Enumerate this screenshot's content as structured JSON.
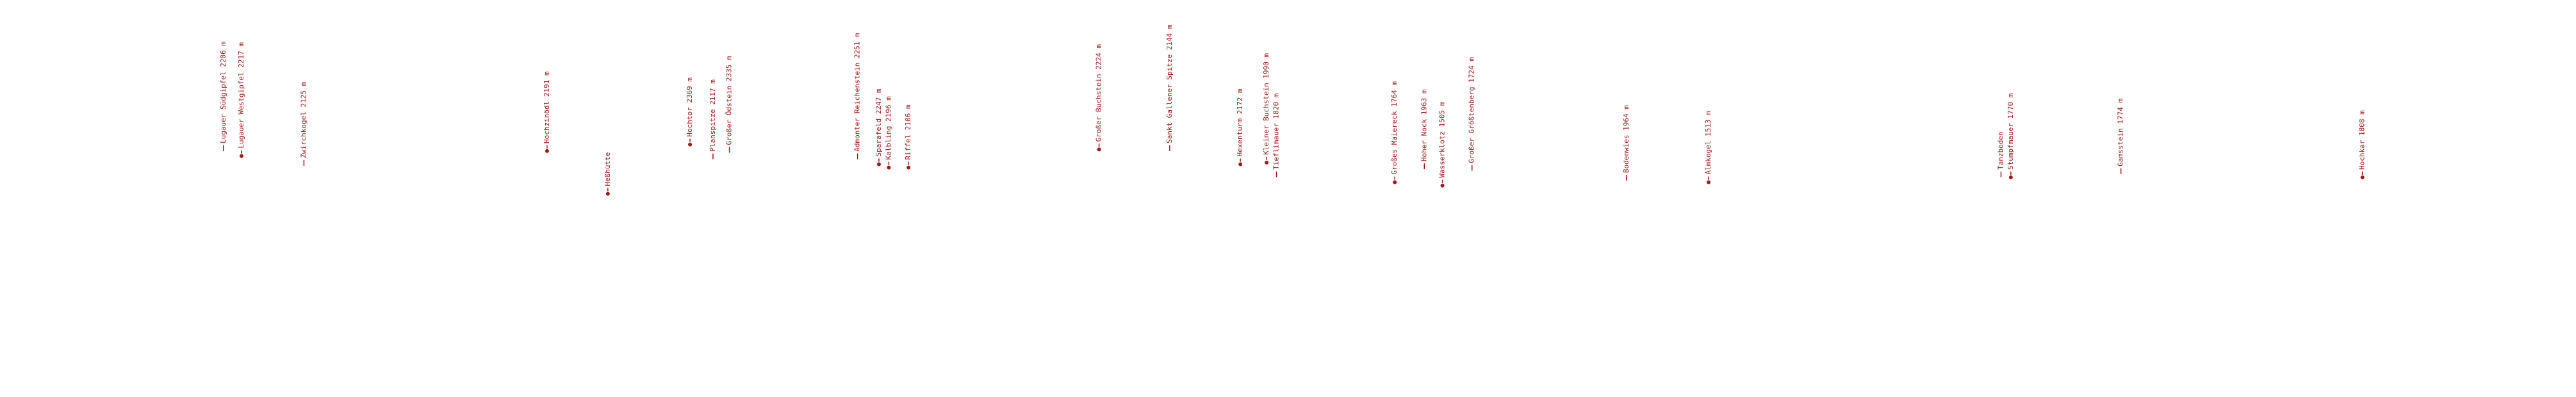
{
  "labels": [
    "Lugauer Südgipfel 2206 m",
    "Lugauer Westgipfel 2217 m",
    "Zwirchkogel 2125 m",
    "Hochzinödl 2191 m",
    "Heßhütte",
    "Hochtor 2369 m",
    "Planspitze 2117 m",
    "Großer Ödstein 2335 m",
    "Admonter Reichenstein 2251 m",
    "Sparafeld 2247 m",
    "Kalbling 2196 m",
    "Riffel 2106 m",
    "Großer Buchstein 2224 m",
    "Sankt Gallener Spitze 2144 m",
    "Hexenturm 2172 m",
    "Kleiner Buchstein 1990 m",
    "Tieflimauer 1820 m",
    "Großes Maiereck 1764 m",
    "Hoher Nock 1963 m",
    "Wasserklotz 1505 m",
    "Großer Größtenberg 1724 m",
    "Bodenwies 1964 m",
    "Almkogel 1513 m",
    "Tanzboden",
    "Stumpfmauer 1770 m",
    "Gamsstein 1774 m",
    "Hochkar 1808 m"
  ]
}
